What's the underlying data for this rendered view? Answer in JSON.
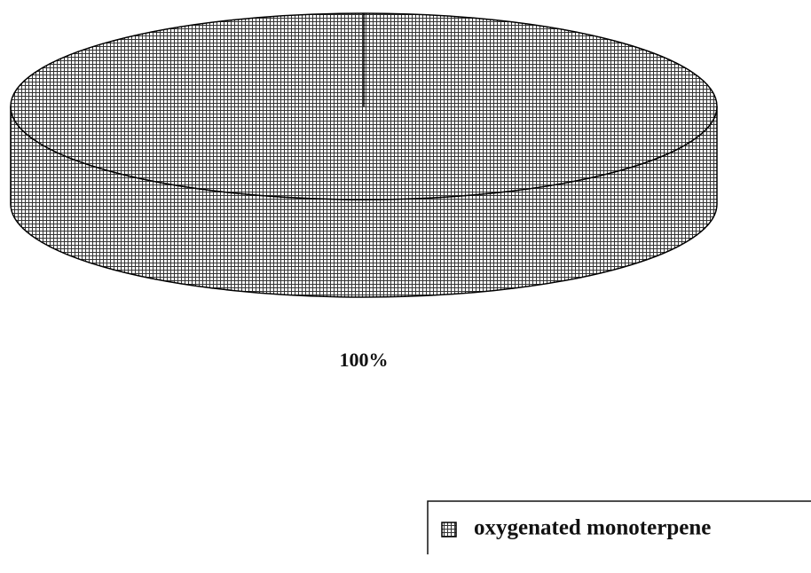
{
  "chart_data": {
    "type": "pie",
    "categories": [
      "oxygenated monoterpene"
    ],
    "values": [
      100
    ],
    "value_labels": [
      "100%"
    ],
    "color": "#000000",
    "legend": "bottom-right"
  }
}
